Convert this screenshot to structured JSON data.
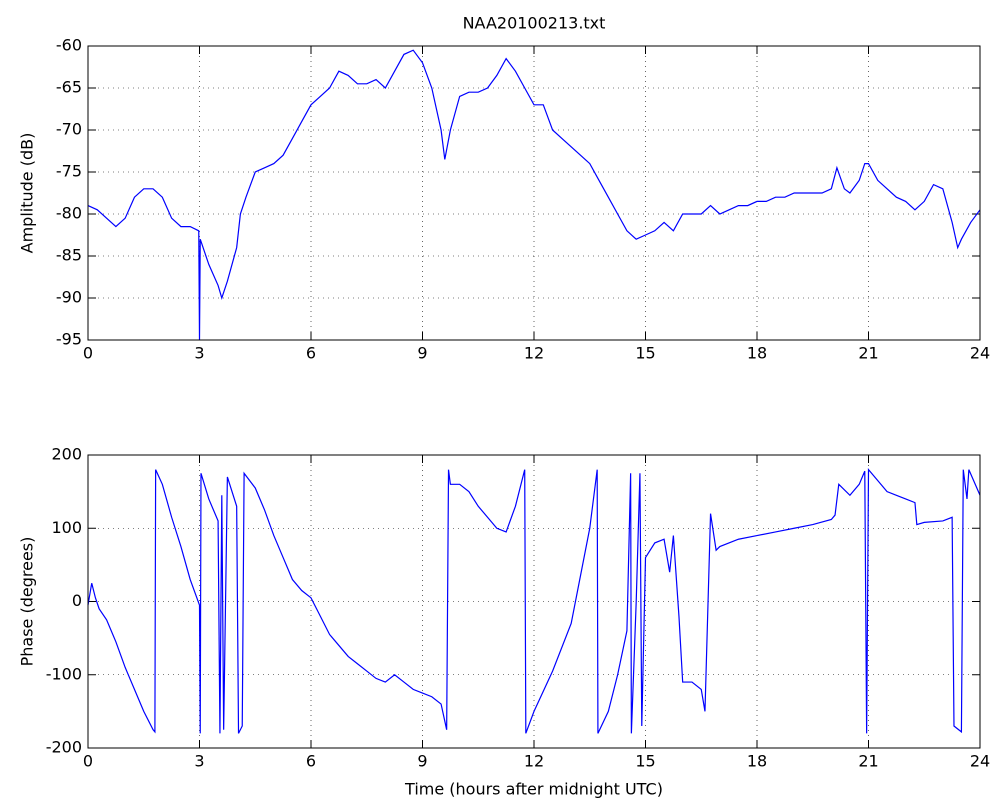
{
  "chart_data": [
    {
      "type": "line",
      "title": "NAA20100213.txt",
      "ylabel": "Amplitude (dB)",
      "color": "#0000ff",
      "grid": true,
      "xlim": [
        0,
        24
      ],
      "xticks": [
        0,
        3,
        6,
        9,
        12,
        15,
        18,
        21,
        24
      ],
      "ylim": [
        -95,
        -60
      ],
      "yticks": [
        -95,
        -90,
        -85,
        -80,
        -75,
        -70,
        -65,
        -60
      ],
      "x": [
        0,
        0.25,
        0.5,
        0.75,
        1.0,
        1.25,
        1.5,
        1.75,
        2.0,
        2.25,
        2.5,
        2.75,
        2.98,
        3.0,
        3.02,
        3.25,
        3.5,
        3.6,
        3.75,
        4.0,
        4.1,
        4.25,
        4.5,
        4.75,
        5.0,
        5.25,
        5.5,
        5.75,
        6.0,
        6.25,
        6.5,
        6.75,
        7.0,
        7.25,
        7.5,
        7.75,
        8.0,
        8.25,
        8.5,
        8.75,
        9.0,
        9.25,
        9.5,
        9.6,
        9.75,
        10.0,
        10.25,
        10.5,
        10.75,
        11.0,
        11.25,
        11.5,
        11.75,
        12.0,
        12.25,
        12.5,
        12.75,
        13.0,
        13.25,
        13.5,
        13.75,
        14.0,
        14.25,
        14.5,
        14.75,
        15.0,
        15.25,
        15.5,
        15.75,
        16.0,
        16.25,
        16.5,
        16.75,
        17.0,
        17.25,
        17.5,
        17.75,
        18.0,
        18.25,
        18.5,
        18.75,
        19.0,
        19.25,
        19.5,
        19.75,
        20.0,
        20.15,
        20.35,
        20.5,
        20.75,
        20.9,
        21.0,
        21.25,
        21.5,
        21.75,
        22.0,
        22.25,
        22.5,
        22.75,
        23.0,
        23.25,
        23.4,
        23.5,
        23.75,
        24.0
      ],
      "values": [
        -79,
        -79.5,
        -80.5,
        -81.5,
        -80.5,
        -78,
        -77,
        -77,
        -78,
        -80.5,
        -81.5,
        -81.5,
        -82,
        -95,
        -83,
        -86,
        -88.5,
        -90,
        -88,
        -84,
        -80,
        -78,
        -75,
        -74.5,
        -74,
        -73,
        -71,
        -69,
        -67,
        -66,
        -65,
        -63,
        -63.5,
        -64.5,
        -64.5,
        -64,
        -65,
        -63,
        -61,
        -60.5,
        -62,
        -65,
        -70,
        -73.5,
        -70,
        -66,
        -65.5,
        -65.5,
        -65,
        -63.5,
        -61.5,
        -63,
        -65,
        -67,
        -67,
        -70,
        -71,
        -72,
        -73,
        -74,
        -76,
        -78,
        -80,
        -82,
        -83,
        -82.5,
        -82,
        -81,
        -82,
        -80,
        -80,
        -80,
        -79,
        -80,
        -79.5,
        -79,
        -79,
        -78.5,
        -78.5,
        -78,
        -78,
        -77.5,
        -77.5,
        -77.5,
        -77.5,
        -77,
        -74.5,
        -77,
        -77.5,
        -76,
        -74,
        -74,
        -76,
        -77,
        -78,
        -78.5,
        -79.5,
        -78.5,
        -76.5,
        -77,
        -81,
        -84,
        -83,
        -81,
        -79.5
      ]
    },
    {
      "type": "line",
      "xlabel": "Time (hours after midnight UTC)",
      "ylabel": "Phase (degrees)",
      "color": "#0000ff",
      "grid": true,
      "xlim": [
        0,
        24
      ],
      "xticks": [
        0,
        3,
        6,
        9,
        12,
        15,
        18,
        21,
        24
      ],
      "ylim": [
        -200,
        200
      ],
      "yticks": [
        -200,
        -100,
        0,
        100,
        200
      ],
      "x": [
        0,
        0.1,
        0.2,
        0.3,
        0.5,
        0.75,
        1.0,
        1.25,
        1.5,
        1.75,
        1.8,
        1.82,
        2.0,
        2.25,
        2.5,
        2.75,
        3.0,
        3.02,
        3.04,
        3.25,
        3.5,
        3.55,
        3.6,
        3.65,
        3.75,
        4.0,
        4.05,
        4.15,
        4.2,
        4.5,
        4.75,
        5.0,
        5.25,
        5.5,
        5.75,
        6.0,
        6.25,
        6.5,
        6.75,
        7.0,
        7.25,
        7.5,
        7.75,
        8.0,
        8.25,
        8.5,
        8.75,
        9.0,
        9.25,
        9.5,
        9.65,
        9.7,
        9.75,
        10.0,
        10.25,
        10.5,
        10.75,
        11.0,
        11.25,
        11.5,
        11.75,
        11.78,
        12.0,
        12.5,
        13.0,
        13.5,
        13.7,
        13.72,
        14.0,
        14.25,
        14.5,
        14.6,
        14.62,
        14.75,
        14.85,
        14.9,
        15.0,
        15.25,
        15.5,
        15.65,
        15.75,
        15.9,
        16.0,
        16.25,
        16.5,
        16.6,
        16.65,
        16.75,
        16.9,
        17.0,
        17.5,
        18.0,
        18.5,
        19.0,
        19.5,
        20.0,
        20.1,
        20.2,
        20.5,
        20.75,
        20.9,
        20.95,
        21.0,
        21.25,
        21.5,
        21.75,
        22.0,
        22.25,
        22.3,
        22.5,
        23.0,
        23.25,
        23.3,
        23.5,
        23.55,
        23.65,
        23.7,
        24.0
      ],
      "values": [
        -5,
        25,
        5,
        -10,
        -25,
        -55,
        -90,
        -120,
        -150,
        -175,
        -178,
        180,
        160,
        115,
        75,
        30,
        -5,
        -180,
        175,
        140,
        110,
        -180,
        145,
        -175,
        170,
        130,
        -180,
        -170,
        175,
        155,
        125,
        90,
        60,
        30,
        15,
        5,
        -20,
        -45,
        -60,
        -75,
        -85,
        -95,
        -105,
        -110,
        -100,
        -110,
        -120,
        -125,
        -130,
        -140,
        -175,
        180,
        160,
        160,
        150,
        130,
        115,
        100,
        95,
        130,
        180,
        -180,
        -150,
        -95,
        -30,
        100,
        180,
        -180,
        -150,
        -100,
        -40,
        175,
        -180,
        0,
        175,
        -170,
        60,
        80,
        85,
        40,
        90,
        -20,
        -110,
        -110,
        -120,
        -150,
        -60,
        120,
        70,
        75,
        85,
        90,
        95,
        100,
        105,
        112,
        118,
        160,
        145,
        160,
        178,
        -180,
        180,
        165,
        150,
        145,
        140,
        135,
        105,
        108,
        110,
        115,
        -170,
        -178,
        180,
        140,
        180,
        145
      ]
    }
  ]
}
